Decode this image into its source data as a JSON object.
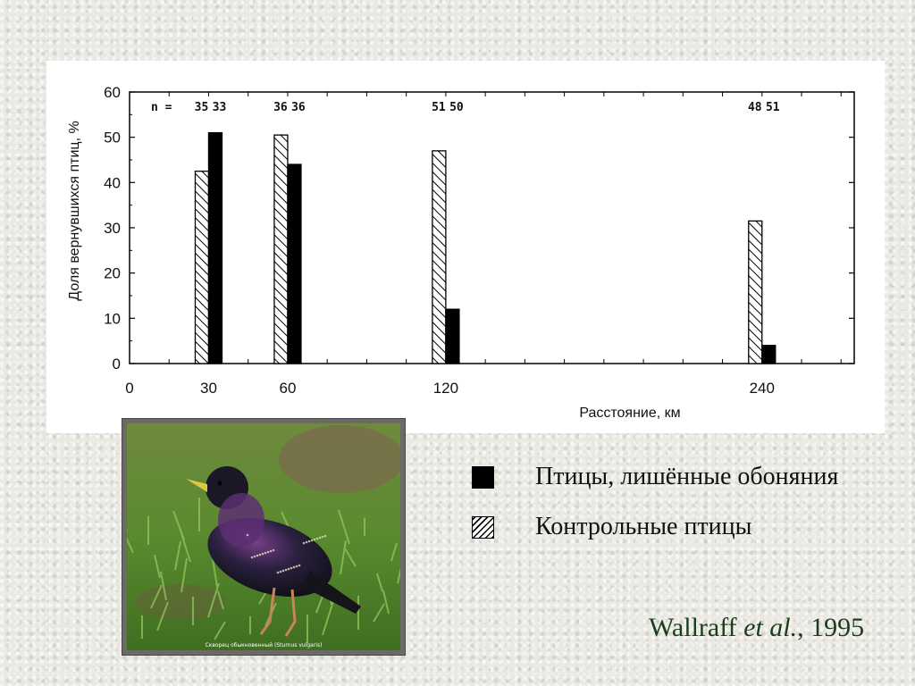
{
  "chart_data": {
    "type": "bar",
    "title": "",
    "xlabel": "Расстояние, км",
    "ylabel": "Доля вернувшихся птиц, %",
    "x_axis_ticks": [
      "0",
      "30",
      "60",
      "120",
      "240"
    ],
    "x_axis_range": [
      0,
      275
    ],
    "y_axis_ticks": [
      "0",
      "10",
      "20",
      "30",
      "40",
      "50",
      "60"
    ],
    "ylim": [
      0,
      60
    ],
    "grid": false,
    "x": [
      30,
      60,
      120,
      240
    ],
    "n_label": "n =",
    "sample_sizes": [
      [
        "35",
        "33"
      ],
      [
        "36",
        "36"
      ],
      [
        "51",
        "50"
      ],
      [
        "48",
        "51"
      ]
    ],
    "series": [
      {
        "name": "Контрольные птицы",
        "fill": "hatched",
        "values": [
          42.5,
          50.5,
          47,
          31.5
        ]
      },
      {
        "name": "Птицы, лишённые обоняния",
        "fill": "#000000",
        "values": [
          51,
          44,
          12,
          4
        ]
      }
    ]
  },
  "legend": {
    "items": [
      {
        "label": "Птицы, лишённые обоняния",
        "swatch": "black"
      },
      {
        "label": "Контрольные птицы",
        "swatch": "hatched"
      }
    ]
  },
  "photo": {
    "subject": "starling-on-grass",
    "caption": "Скворец обыкновенный (Sturnus vulgaris)"
  },
  "citation": {
    "author": "Wallraff",
    "etal": "et al.",
    "year": ", 1995"
  },
  "colors": {
    "background": "#e9e8e2",
    "citation": "#1c3d1c",
    "frame": "#6c6a66"
  }
}
